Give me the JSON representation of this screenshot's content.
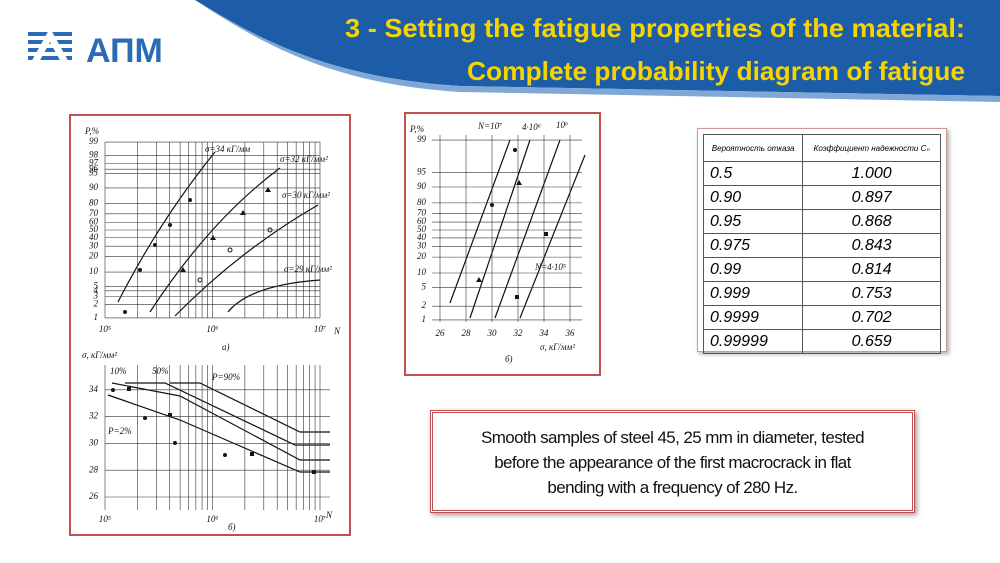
{
  "header": {
    "logo": "АПМ",
    "title_lines": [
      "3 - Setting the fatigue properties of the material:",
      "Complete probability diagram of fatigue"
    ]
  },
  "figure_a": {
    "y_label": "P,%",
    "y_ticks": [
      "99",
      "98",
      "97",
      "96",
      "95",
      "90",
      "80",
      "70",
      "60",
      "50",
      "40",
      "30",
      "20",
      "10",
      "5",
      "4",
      "3",
      "2",
      "1"
    ],
    "x_ticks": [
      "10⁵",
      "10⁶",
      "10⁷"
    ],
    "x_label": "N",
    "curve_labels": [
      "σ=34 кГ/мм",
      "σ=32 кГ/мм²",
      "σ=30 кГ/мм²",
      "σ=29 кГ/мм²"
    ],
    "caption": "а)"
  },
  "figure_b": {
    "y_label": "σ, кГ/мм²",
    "y_ticks": [
      "34",
      "32",
      "30",
      "28",
      "26"
    ],
    "x_ticks": [
      "10⁵",
      "10⁶",
      "10⁷"
    ],
    "x_label": "N",
    "curve_labels": [
      "10%",
      "50%",
      "P=90%",
      "P=2%"
    ],
    "caption": "б)"
  },
  "figure_c": {
    "y_label": "P,%",
    "y_ticks": [
      "99",
      "95",
      "90",
      "80",
      "70",
      "60",
      "50",
      "40",
      "30",
      "20",
      "10",
      "5",
      "2",
      "1"
    ],
    "x_ticks": [
      "26",
      "28",
      "30",
      "32",
      "34",
      "36"
    ],
    "x_label": "σ, кГ/мм²",
    "line_labels": [
      "N=10⁷",
      "4·10⁶",
      "10⁶",
      "N=4·10⁵"
    ],
    "caption": "б)"
  },
  "table": {
    "header": [
      "Вероятность отказа",
      "Коэффициент надежности Cₙ"
    ],
    "rows": [
      [
        "0.5",
        "1.000"
      ],
      [
        "0.90",
        "0.897"
      ],
      [
        "0.95",
        "0.868"
      ],
      [
        "0.975",
        "0.843"
      ],
      [
        "0.99",
        "0.814"
      ],
      [
        "0.999",
        "0.753"
      ],
      [
        "0.9999",
        "0.702"
      ],
      [
        "0.99999",
        "0.659"
      ]
    ]
  },
  "note": {
    "lines": [
      "Smooth samples of steel 45, 25 mm in diameter, tested",
      "before the appearance of the first macrocrack in flat",
      "bending with a frequency of 280 Hz."
    ]
  }
}
